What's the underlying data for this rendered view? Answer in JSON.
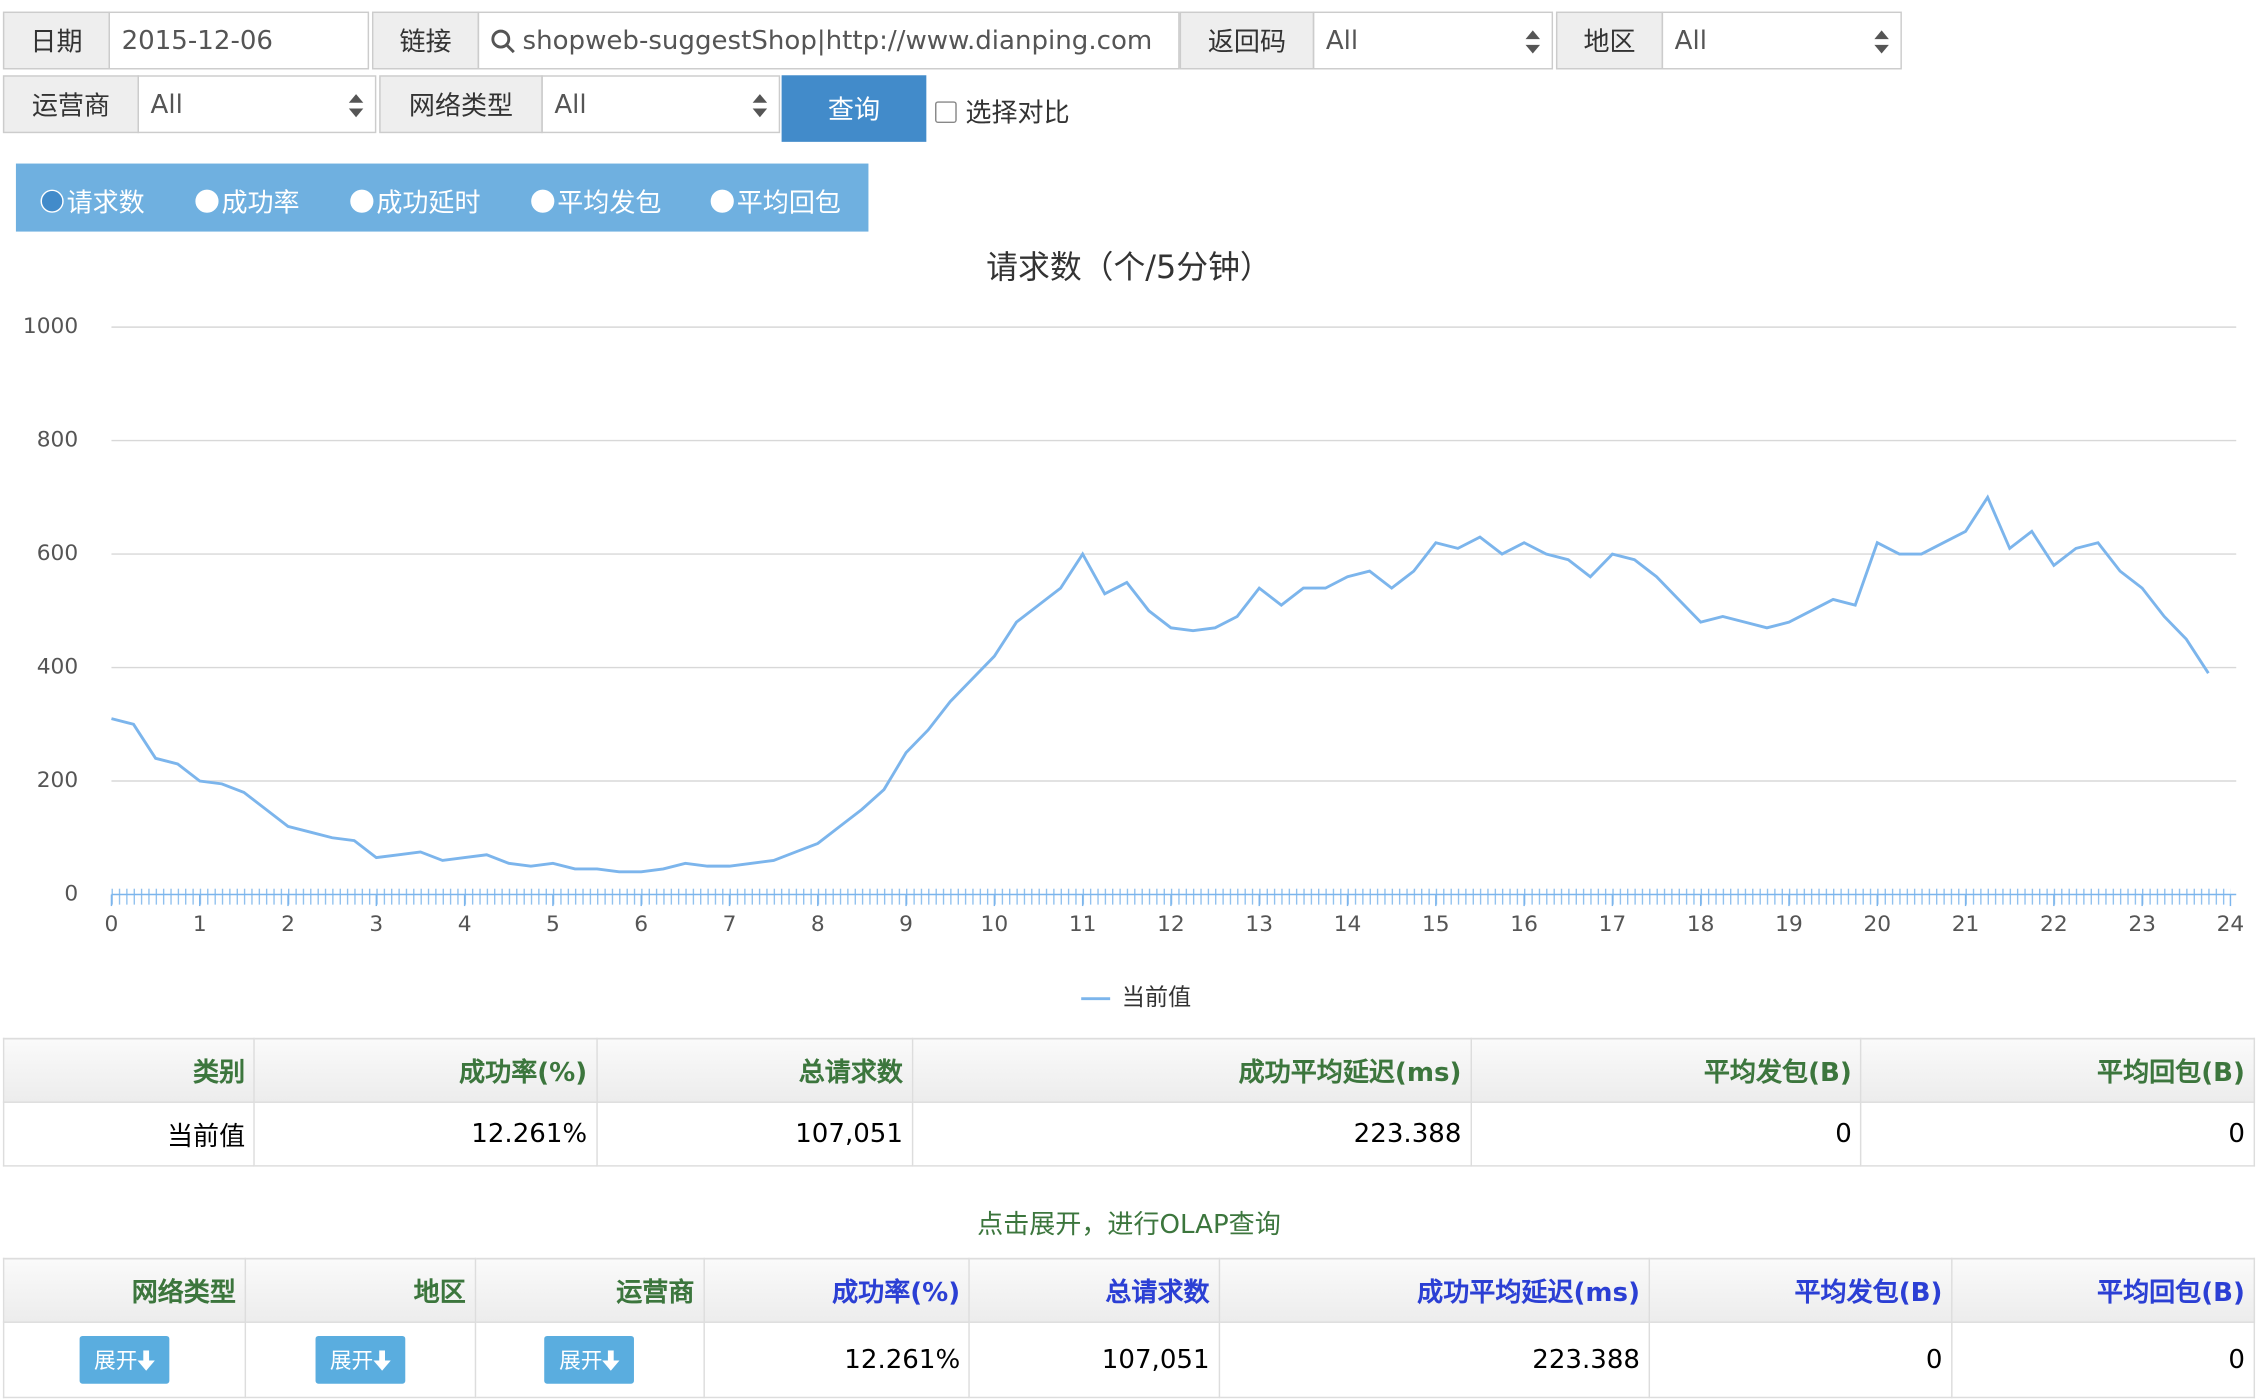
{
  "filters": {
    "date_label": "日期",
    "date": "2015-12-06",
    "link_label": "链接",
    "link": "shopweb-suggestShop|http://www.dianping.com",
    "code_label": "返回码",
    "code": "All",
    "region_label": "地区",
    "region": "All",
    "carrier_label": "运营商",
    "carrier": "All",
    "net_label": "网络类型",
    "net": "All",
    "query": "查询",
    "compare": "选择对比"
  },
  "tabs": [
    "请求数",
    "成功率",
    "成功延时",
    "平均发包",
    "平均回包"
  ],
  "chart_data": {
    "type": "line",
    "title": "请求数（个/5分钟）",
    "x": [
      0,
      0.25,
      0.5,
      0.75,
      1,
      1.25,
      1.5,
      1.75,
      2,
      2.25,
      2.5,
      2.75,
      3,
      3.25,
      3.5,
      3.75,
      4,
      4.25,
      4.5,
      4.75,
      5,
      5.25,
      5.5,
      5.75,
      6,
      6.25,
      6.5,
      6.75,
      7,
      7.25,
      7.5,
      7.75,
      8,
      8.25,
      8.5,
      8.75,
      9,
      9.25,
      9.5,
      9.75,
      10,
      10.25,
      10.5,
      10.75,
      11,
      11.25,
      11.5,
      11.75,
      12,
      12.25,
      12.5,
      12.75,
      13,
      13.25,
      13.5,
      13.75,
      14,
      14.25,
      14.5,
      14.75,
      15,
      15.25,
      15.5,
      15.75,
      16,
      16.25,
      16.5,
      16.75,
      17,
      17.25,
      17.5,
      17.75,
      18,
      18.25,
      18.5,
      18.75,
      19,
      19.25,
      19.5,
      19.75,
      20,
      20.25,
      20.5,
      20.75,
      21,
      21.25,
      21.5,
      21.75,
      22,
      22.25,
      22.5,
      22.75,
      23,
      23.25,
      23.5,
      23.75
    ],
    "series": [
      {
        "name": "当前值",
        "color": "#7cb5ec",
        "values": [
          310,
          300,
          240,
          230,
          200,
          195,
          180,
          150,
          120,
          110,
          100,
          95,
          65,
          70,
          75,
          60,
          65,
          70,
          55,
          50,
          55,
          45,
          45,
          40,
          40,
          45,
          55,
          50,
          50,
          55,
          60,
          75,
          90,
          120,
          150,
          185,
          250,
          290,
          340,
          380,
          420,
          480,
          510,
          540,
          600,
          530,
          550,
          500,
          470,
          465,
          470,
          490,
          540,
          510,
          540,
          540,
          560,
          570,
          540,
          570,
          620,
          610,
          630,
          600,
          620,
          600,
          590,
          560,
          600,
          590,
          560,
          520,
          480,
          490,
          480,
          470,
          480,
          500,
          520,
          510,
          620,
          600,
          600,
          620,
          640,
          700,
          610,
          640,
          580,
          610,
          620,
          570,
          540,
          490,
          450,
          390
        ]
      }
    ],
    "xlim": [
      0,
      24
    ],
    "xticks": [
      0,
      1,
      2,
      3,
      4,
      5,
      6,
      7,
      8,
      9,
      10,
      11,
      12,
      13,
      14,
      15,
      16,
      17,
      18,
      19,
      20,
      21,
      22,
      23,
      24
    ],
    "ylim": [
      0,
      1000
    ],
    "yticks": [
      0,
      200,
      400,
      600,
      800,
      1000
    ],
    "grid": true,
    "legend": "bottom"
  },
  "summary": {
    "headers": [
      "类别",
      "成功率(%)",
      "总请求数",
      "成功平均延迟(ms)",
      "平均发包(B)",
      "平均回包(B)"
    ],
    "rows": [
      [
        "当前值",
        "12.261%",
        "107,051",
        "223.388",
        "0",
        "0"
      ]
    ]
  },
  "olap": {
    "title": "点击展开，进行OLAP查询",
    "headers": [
      "网络类型",
      "地区",
      "运营商",
      "成功率(%)",
      "总请求数",
      "成功平均延迟(ms)",
      "平均发包(B)",
      "平均回包(B)"
    ],
    "rows": [
      [
        "展开",
        "展开",
        "展开",
        "12.261%",
        "107,051",
        "223.388",
        "0",
        "0"
      ]
    ]
  }
}
